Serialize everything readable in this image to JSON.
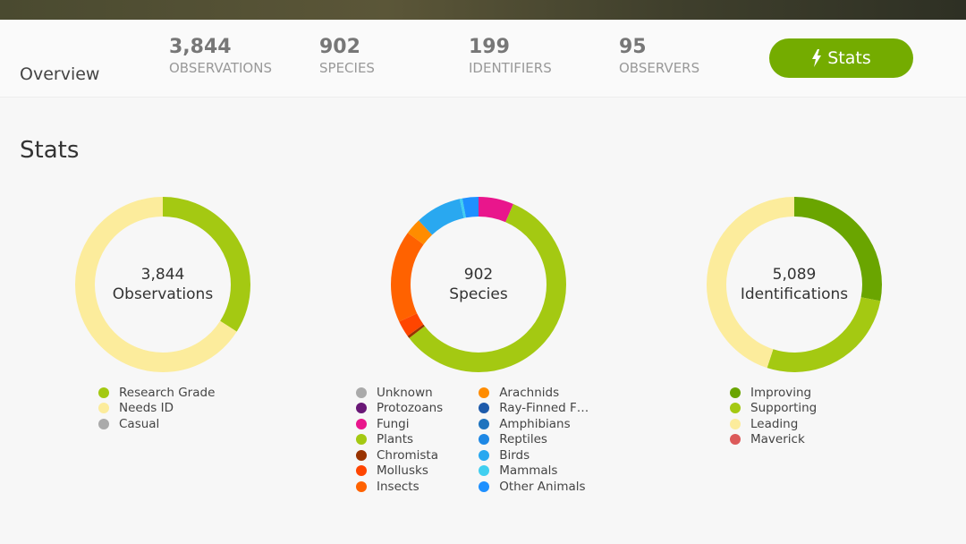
{
  "header": {
    "title": "Overview",
    "stats": [
      {
        "value": "3,844",
        "label": "OBSERVATIONS"
      },
      {
        "value": "902",
        "label": "SPECIES"
      },
      {
        "value": "199",
        "label": "IDENTIFIERS"
      },
      {
        "value": "95",
        "label": "OBSERVERS"
      }
    ],
    "button": "Stats"
  },
  "section_title": "Stats",
  "donuts": [
    {
      "center_value": "3,844",
      "center_label": "Observations",
      "columns": 1,
      "segments": [
        {
          "name": "Research Grade",
          "color": "#a4c912",
          "share": 34
        },
        {
          "name": "Needs ID",
          "color": "#fcec9c",
          "share": 66
        },
        {
          "name": "Casual",
          "color": "#aaaaaa",
          "share": 0
        }
      ]
    },
    {
      "center_value": "902",
      "center_label": "Species",
      "columns": 2,
      "segments": [
        {
          "name": "Unknown",
          "color": "#aaaaaa",
          "share": 0
        },
        {
          "name": "Protozoans",
          "color": "#691776",
          "share": 0
        },
        {
          "name": "Fungi",
          "color": "#e9168c",
          "share": 6.5
        },
        {
          "name": "Plants",
          "color": "#a4c912",
          "share": 58
        },
        {
          "name": "Chromista",
          "color": "#993300",
          "share": 0.5
        },
        {
          "name": "Mollusks",
          "color": "#ff4500",
          "share": 3
        },
        {
          "name": "Insects",
          "color": "#ff6200",
          "share": 17
        },
        {
          "name": "Arachnids",
          "color": "#ff8c00",
          "share": 3
        },
        {
          "name": "Ray-Finned F…",
          "color": "#1e5bab",
          "share": 0
        },
        {
          "name": "Amphibians",
          "color": "#1e73be",
          "share": 0
        },
        {
          "name": "Reptiles",
          "color": "#1e88e5",
          "share": 0
        },
        {
          "name": "Birds",
          "color": "#29a8f0",
          "share": 8.5
        },
        {
          "name": "Mammals",
          "color": "#40cff0",
          "share": 0.5
        },
        {
          "name": "Other Animals",
          "color": "#1e90ff",
          "share": 3
        }
      ]
    },
    {
      "center_value": "5,089",
      "center_label": "Identifications",
      "columns": 1,
      "segments": [
        {
          "name": "Improving",
          "color": "#6aa500",
          "share": 28
        },
        {
          "name": "Supporting",
          "color": "#a4c912",
          "share": 27
        },
        {
          "name": "Leading",
          "color": "#fcec9c",
          "share": 45
        },
        {
          "name": "Maverick",
          "color": "#dc5a5a",
          "share": 0
        }
      ]
    }
  ]
}
